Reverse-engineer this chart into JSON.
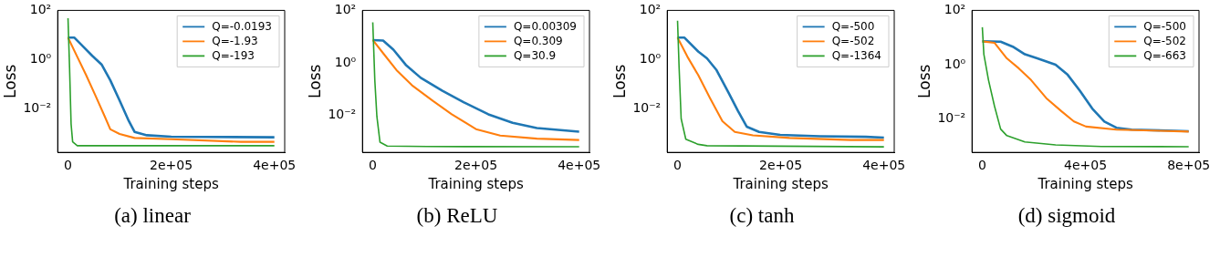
{
  "chart_data": [
    {
      "type": "line",
      "xlabel": "Training steps",
      "ylabel": "Loss",
      "log": "y",
      "grid": false,
      "legend": "top right",
      "marker": "none",
      "line_style": "solid",
      "annotations": [
        "(a) linear"
      ],
      "xlim": [
        -20000,
        420000
      ],
      "xticks": [
        {
          "value": 0,
          "label": "0"
        },
        {
          "value": 200000,
          "label": "2e+05"
        },
        {
          "value": 400000,
          "label": "4e+05"
        }
      ],
      "ylim": [
        0.00016,
        100
      ],
      "yticks": [
        {
          "value": 100,
          "label": "10²"
        },
        {
          "value": 1,
          "label": "10⁰"
        },
        {
          "value": 0.01,
          "label": "10⁻²"
        }
      ],
      "series": [
        {
          "name": "Q=-0.0193",
          "color": "#1f77b4",
          "x": [
            0,
            12000,
            29000,
            47000,
            65000,
            82000,
            100000,
            118000,
            129000,
            153000,
            200000,
            400000
          ],
          "values": [
            7.8,
            7.8,
            3.4,
            1.4,
            0.62,
            0.14,
            0.021,
            0.003,
            0.0011,
            0.0008,
            0.0007,
            0.00066
          ]
        },
        {
          "name": "Q=-1.93",
          "color": "#ff7f0e",
          "x": [
            0,
            18000,
            35000,
            53000,
            71000,
            82000,
            100000,
            129000,
            200000,
            335000,
            400000
          ],
          "values": [
            7.8,
            1.27,
            0.23,
            0.034,
            0.0048,
            0.0014,
            0.0009,
            0.00062,
            0.00055,
            0.00043,
            0.00043
          ]
        },
        {
          "name": "Q=-193",
          "color": "#2ca02c",
          "x": [
            0,
            3000,
            6000,
            9000,
            18000,
            400000
          ],
          "values": [
            48,
            0.48,
            0.0023,
            0.00043,
            0.0003,
            0.0003
          ]
        }
      ]
    },
    {
      "type": "line",
      "xlabel": "Training steps",
      "ylabel": "Loss",
      "log": "y",
      "grid": false,
      "legend": "top right",
      "marker": "none",
      "line_style": "solid",
      "annotations": [
        "(b) ReLU"
      ],
      "xlim": [
        -20000,
        420000
      ],
      "xticks": [
        {
          "value": 0,
          "label": "0"
        },
        {
          "value": 200000,
          "label": "2e+05"
        },
        {
          "value": 400000,
          "label": "4e+05"
        }
      ],
      "ylim": [
        0.00039,
        100
      ],
      "yticks": [
        {
          "value": 100,
          "label": "10²"
        },
        {
          "value": 1,
          "label": "10⁰"
        },
        {
          "value": 0.01,
          "label": "10⁻²"
        }
      ],
      "series": [
        {
          "name": "Q=0.00309",
          "color": "#1f77b4",
          "x": [
            0,
            20000,
            40000,
            64000,
            93000,
            135000,
            176000,
            224000,
            271000,
            318000,
            400000
          ],
          "values": [
            7.4,
            7.1,
            3.2,
            0.84,
            0.27,
            0.087,
            0.032,
            0.011,
            0.0052,
            0.0033,
            0.0024
          ]
        },
        {
          "name": "Q=0.309",
          "color": "#ff7f0e",
          "x": [
            0,
            22000,
            46000,
            76000,
            117000,
            153000,
            200000,
            247000,
            318000,
            400000
          ],
          "values": [
            7.4,
            2.1,
            0.53,
            0.14,
            0.035,
            0.011,
            0.003,
            0.0017,
            0.0013,
            0.00115
          ]
        },
        {
          "name": "Q=30.9",
          "color": "#2ca02c",
          "x": [
            0,
            4000,
            8000,
            14000,
            28000,
            105000,
            400000
          ],
          "values": [
            35,
            0.21,
            0.009,
            0.00095,
            0.00068,
            0.00065,
            0.00064
          ]
        }
      ]
    },
    {
      "type": "line",
      "xlabel": "Training steps",
      "ylabel": "Loss",
      "log": "y",
      "grid": false,
      "legend": "top right",
      "marker": "none",
      "line_style": "solid",
      "annotations": [
        "(c) tanh"
      ],
      "xlim": [
        -20000,
        420000
      ],
      "xticks": [
        {
          "value": 0,
          "label": "0"
        },
        {
          "value": 200000,
          "label": "2e+05"
        },
        {
          "value": 400000,
          "label": "4e+05"
        }
      ],
      "ylim": [
        0.00016,
        100
      ],
      "yticks": [
        {
          "value": 100,
          "label": "10²"
        },
        {
          "value": 1,
          "label": "10⁰"
        },
        {
          "value": 0.01,
          "label": "10⁻²"
        }
      ],
      "series": [
        {
          "name": "Q=-500",
          "color": "#1f77b4",
          "x": [
            0,
            13000,
            40000,
            57000,
            75000,
            99000,
            117000,
            134000,
            158000,
            199000,
            276000,
            365000,
            400000
          ],
          "values": [
            7.8,
            7.8,
            2.1,
            1.1,
            0.38,
            0.043,
            0.0079,
            0.0018,
            0.0011,
            0.00083,
            0.00073,
            0.00069,
            0.00064
          ]
        },
        {
          "name": "Q=-502",
          "color": "#ff7f0e",
          "x": [
            0,
            19000,
            40000,
            63000,
            87000,
            111000,
            146000,
            217000,
            336000,
            400000
          ],
          "values": [
            7.8,
            1.3,
            0.23,
            0.026,
            0.003,
            0.0011,
            0.00079,
            0.00062,
            0.00051,
            0.00051
          ]
        },
        {
          "name": "Q=-1364",
          "color": "#2ca02c",
          "x": [
            0,
            3000,
            7000,
            16000,
            40000,
            57000,
            400000
          ],
          "values": [
            38,
            0.48,
            0.0038,
            0.00055,
            0.00034,
            0.0003,
            0.00027
          ]
        }
      ]
    },
    {
      "type": "line",
      "xlabel": "Training steps",
      "ylabel": "Loss",
      "log": "y",
      "grid": false,
      "legend": "top right",
      "marker": "none",
      "line_style": "solid",
      "annotations": [
        "(d) sigmoid"
      ],
      "xlim": [
        -40000,
        840000
      ],
      "xticks": [
        {
          "value": 0,
          "label": "0"
        },
        {
          "value": 400000,
          "label": "4e+05"
        },
        {
          "value": 800000,
          "label": "8e+05"
        }
      ],
      "ylim": [
        0.00058,
        100
      ],
      "yticks": [
        {
          "value": 100,
          "label": "10²"
        },
        {
          "value": 1,
          "label": "10⁰"
        },
        {
          "value": 0.01,
          "label": "10⁻²"
        }
      ],
      "series": [
        {
          "name": "Q=-500",
          "color": "#1f77b4",
          "x": [
            0,
            71000,
            118000,
            165000,
            213000,
            284000,
            331000,
            378000,
            426000,
            473000,
            520000,
            579000,
            800000
          ],
          "values": [
            7.2,
            7.0,
            4.6,
            2.4,
            1.7,
            1.0,
            0.42,
            0.11,
            0.024,
            0.008,
            0.0047,
            0.004,
            0.0035
          ]
        },
        {
          "name": "Q=-502",
          "color": "#ff7f0e",
          "x": [
            0,
            47000,
            95000,
            142000,
            189000,
            248000,
            307000,
            355000,
            402000,
            520000,
            800000
          ],
          "values": [
            7.2,
            6.4,
            1.7,
            0.72,
            0.27,
            0.058,
            0.019,
            0.008,
            0.0052,
            0.004,
            0.0034
          ]
        },
        {
          "name": "Q=-663",
          "color": "#2ca02c",
          "x": [
            0,
            6000,
            24000,
            47000,
            71000,
            95000,
            165000,
            284000,
            461000,
            800000
          ],
          "values": [
            24,
            2.4,
            0.27,
            0.03,
            0.0042,
            0.0024,
            0.0014,
            0.0011,
            0.00095,
            0.00094
          ]
        }
      ]
    }
  ]
}
